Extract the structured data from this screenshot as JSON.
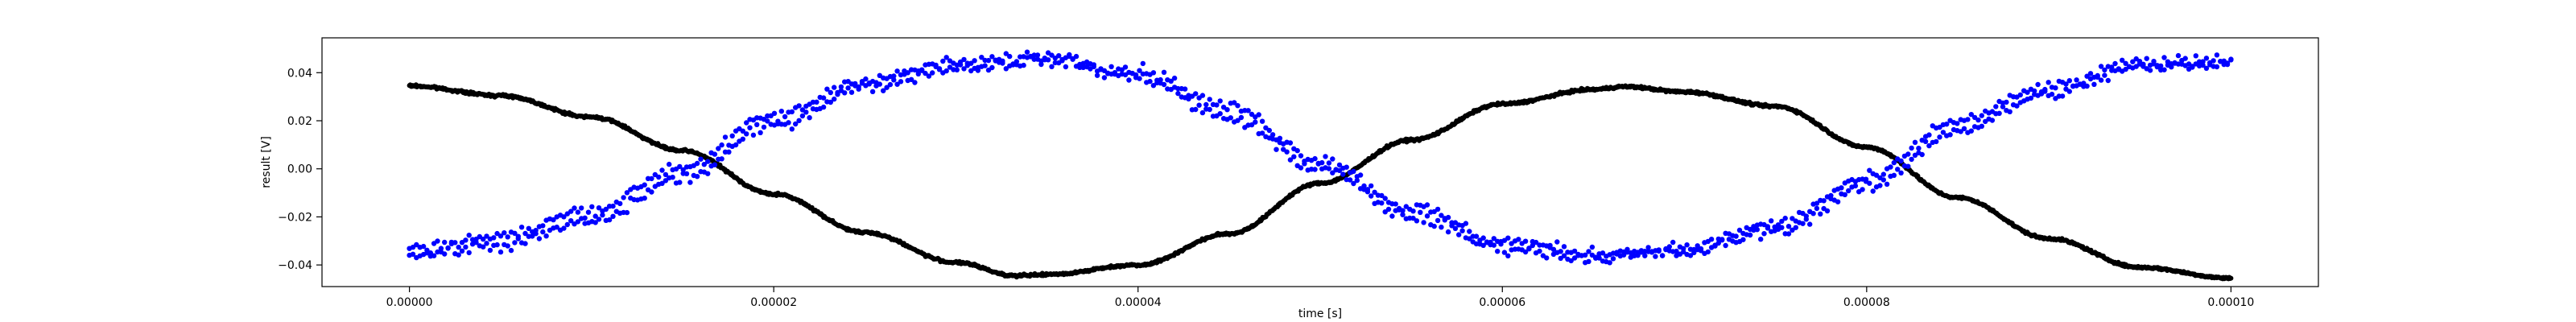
{
  "chart_data": {
    "type": "scatter",
    "title": "",
    "xlabel": "time [s]",
    "ylabel": "result [V]",
    "xlim": [
      -4.8e-06,
      0.0001048
    ],
    "ylim": [
      -0.049,
      0.0545
    ],
    "grid": false,
    "x_ticks": [
      0.0,
      2e-05,
      4e-05,
      6e-05,
      8e-05,
      0.0001
    ],
    "x_tick_labels": [
      "0.00000",
      "0.00002",
      "0.00004",
      "0.00006",
      "0.00008",
      "0.00010"
    ],
    "y_ticks": [
      -0.04,
      -0.02,
      0.0,
      0.02,
      0.04
    ],
    "y_tick_labels": [
      "−0.04",
      "−0.02",
      "0.00",
      "0.02",
      "0.04"
    ],
    "series": [
      {
        "color": "#000000",
        "marker": "dot",
        "x": [
          0.0,
          5e-06,
          1e-05,
          1.5e-05,
          2e-05,
          2.5e-05,
          3e-05,
          3.33e-05,
          3.5e-05,
          4e-05,
          4.5e-05,
          5e-05,
          5.5e-05,
          6e-05,
          6.5e-05,
          6.67e-05,
          7e-05,
          7.5e-05,
          8e-05,
          8.5e-05,
          9e-05,
          9.5e-05,
          0.0001
        ],
        "y": [
          0.0345,
          0.0305,
          0.0215,
          0.0075,
          -0.0105,
          -0.0265,
          -0.039,
          -0.0445,
          -0.044,
          -0.04,
          -0.027,
          -0.006,
          0.012,
          0.027,
          0.033,
          0.0342,
          0.032,
          0.026,
          0.009,
          -0.012,
          -0.029,
          -0.041,
          -0.0455
        ]
      },
      {
        "color": "#0000ff",
        "marker": "dot",
        "x": [
          0.0,
          5e-06,
          1e-05,
          1.5e-05,
          2e-05,
          2.5e-05,
          3e-05,
          3.5e-05,
          4e-05,
          4.5e-05,
          5e-05,
          5.5e-05,
          6e-05,
          6.5e-05,
          7e-05,
          7.5e-05,
          8e-05,
          8.5e-05,
          9e-05,
          9.5e-05,
          0.0001
        ],
        "y": [
          -0.033,
          -0.028,
          -0.017,
          0.001,
          0.022,
          0.037,
          0.044,
          0.047,
          0.041,
          0.026,
          0.004,
          -0.016,
          -0.03,
          -0.035,
          -0.033,
          -0.023,
          -0.004,
          0.02,
          0.034,
          0.044,
          0.046
        ]
      },
      {
        "color": "#0000ff",
        "marker": "dot",
        "x": [
          0.0,
          5e-06,
          1e-05,
          1.5e-05,
          2e-05,
          2.5e-05,
          3e-05,
          3.5e-05,
          4e-05,
          4.5e-05,
          5e-05,
          5.5e-05,
          6e-05,
          6.5e-05,
          7e-05,
          7.5e-05,
          8e-05,
          8.5e-05,
          9e-05,
          9.5e-05,
          0.0001
        ],
        "y": [
          -0.036,
          -0.032,
          -0.022,
          -0.004,
          0.018,
          0.034,
          0.042,
          0.045,
          0.038,
          0.021,
          0.0,
          -0.02,
          -0.033,
          -0.037,
          -0.035,
          -0.026,
          -0.008,
          0.016,
          0.031,
          0.042,
          0.044
        ]
      }
    ]
  }
}
